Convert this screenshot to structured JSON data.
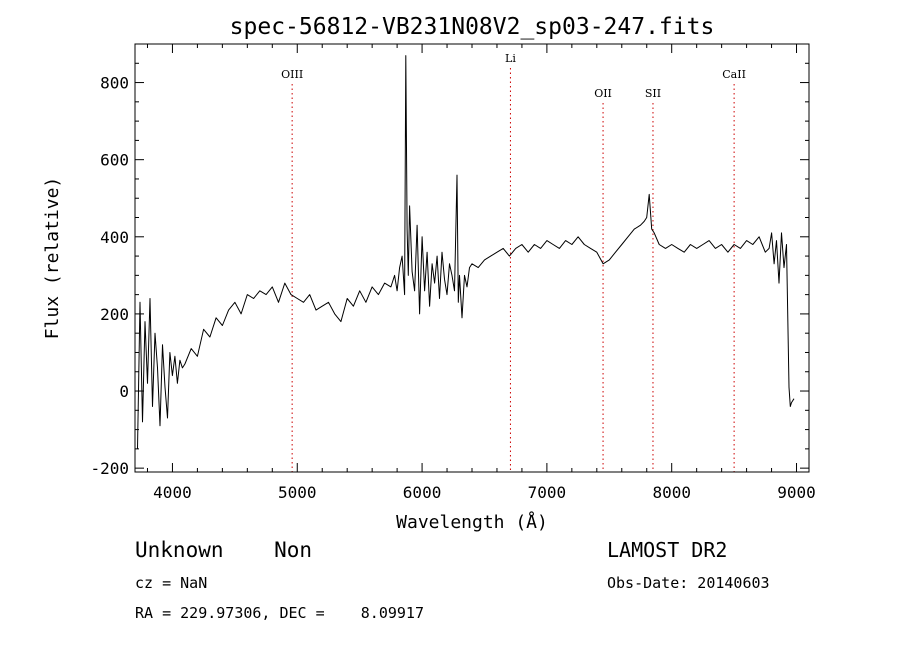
{
  "chart_data": {
    "type": "line",
    "title": "spec-56812-VB231N08V2_sp03-247.fits",
    "xlabel": "Wavelength (Å)",
    "ylabel": "Flux (relative)",
    "xlim": [
      3700,
      9100
    ],
    "ylim": [
      -210,
      900
    ],
    "xticks": [
      4000,
      5000,
      6000,
      7000,
      8000,
      9000
    ],
    "yticks": [
      -200,
      0,
      200,
      400,
      600,
      800
    ],
    "line_color": "#000000",
    "marker_color": "#cc0000",
    "series": [
      {
        "x": [
          3720,
          3740,
          3760,
          3780,
          3800,
          3820,
          3840,
          3860,
          3880,
          3900,
          3920,
          3940,
          3960,
          3980,
          4000,
          4020,
          4040,
          4060,
          4080,
          4100,
          4150,
          4200,
          4250,
          4300,
          4350,
          4400,
          4450,
          4500,
          4550,
          4600,
          4650,
          4700,
          4750,
          4800,
          4850,
          4900,
          4950,
          5000,
          5050,
          5100,
          5150,
          5200,
          5250,
          5300,
          5350,
          5400,
          5450,
          5500,
          5550,
          5600,
          5650,
          5700,
          5750,
          5780,
          5800,
          5820,
          5840,
          5860,
          5870,
          5880,
          5890,
          5900,
          5920,
          5940,
          5960,
          5980,
          6000,
          6020,
          6040,
          6060,
          6080,
          6100,
          6120,
          6140,
          6160,
          6180,
          6200,
          6220,
          6240,
          6260,
          6280,
          6290,
          6300,
          6320,
          6340,
          6360,
          6380,
          6400,
          6450,
          6500,
          6550,
          6600,
          6650,
          6700,
          6750,
          6800,
          6850,
          6900,
          6950,
          7000,
          7050,
          7100,
          7150,
          7200,
          7250,
          7300,
          7350,
          7400,
          7450,
          7500,
          7550,
          7600,
          7650,
          7700,
          7750,
          7780,
          7800,
          7820,
          7840,
          7860,
          7900,
          7950,
          8000,
          8050,
          8100,
          8150,
          8200,
          8250,
          8300,
          8350,
          8400,
          8450,
          8500,
          8550,
          8600,
          8650,
          8700,
          8750,
          8780,
          8800,
          8820,
          8840,
          8860,
          8880,
          8900,
          8920,
          8940,
          8950,
          8960,
          8980
        ],
        "y": [
          -150,
          230,
          -80,
          180,
          20,
          240,
          -40,
          150,
          60,
          -90,
          120,
          10,
          -70,
          100,
          40,
          90,
          20,
          80,
          60,
          70,
          110,
          90,
          160,
          140,
          190,
          170,
          210,
          230,
          200,
          250,
          240,
          260,
          250,
          270,
          230,
          280,
          250,
          240,
          230,
          250,
          210,
          220,
          230,
          200,
          180,
          240,
          220,
          260,
          230,
          270,
          250,
          280,
          270,
          300,
          260,
          320,
          350,
          250,
          870,
          420,
          300,
          480,
          310,
          260,
          430,
          200,
          400,
          260,
          360,
          220,
          330,
          280,
          350,
          240,
          360,
          290,
          250,
          330,
          300,
          260,
          560,
          230,
          300,
          190,
          300,
          270,
          320,
          330,
          320,
          340,
          350,
          360,
          370,
          350,
          370,
          380,
          360,
          380,
          370,
          390,
          380,
          370,
          390,
          380,
          400,
          380,
          370,
          360,
          330,
          340,
          360,
          380,
          400,
          420,
          430,
          440,
          450,
          510,
          420,
          410,
          380,
          370,
          380,
          370,
          360,
          380,
          370,
          380,
          390,
          370,
          380,
          360,
          380,
          370,
          390,
          380,
          400,
          360,
          370,
          410,
          330,
          390,
          280,
          410,
          320,
          380,
          10,
          -40,
          -30,
          -20
        ]
      }
    ],
    "annotations": [
      {
        "label": "OIII",
        "x": 4959
      },
      {
        "label": "Li",
        "x": 6708
      },
      {
        "label": "OII",
        "x": 7450
      },
      {
        "label": "SII",
        "x": 7850
      },
      {
        "label": "CaII",
        "x": 8500
      }
    ]
  },
  "footer": {
    "object_type": "Unknown    Non",
    "survey": "LAMOST DR2",
    "cz": "cz = NaN",
    "obs_date": "Obs-Date: 20140603",
    "ra_dec": "RA = 229.97306, DEC =    8.09917"
  }
}
